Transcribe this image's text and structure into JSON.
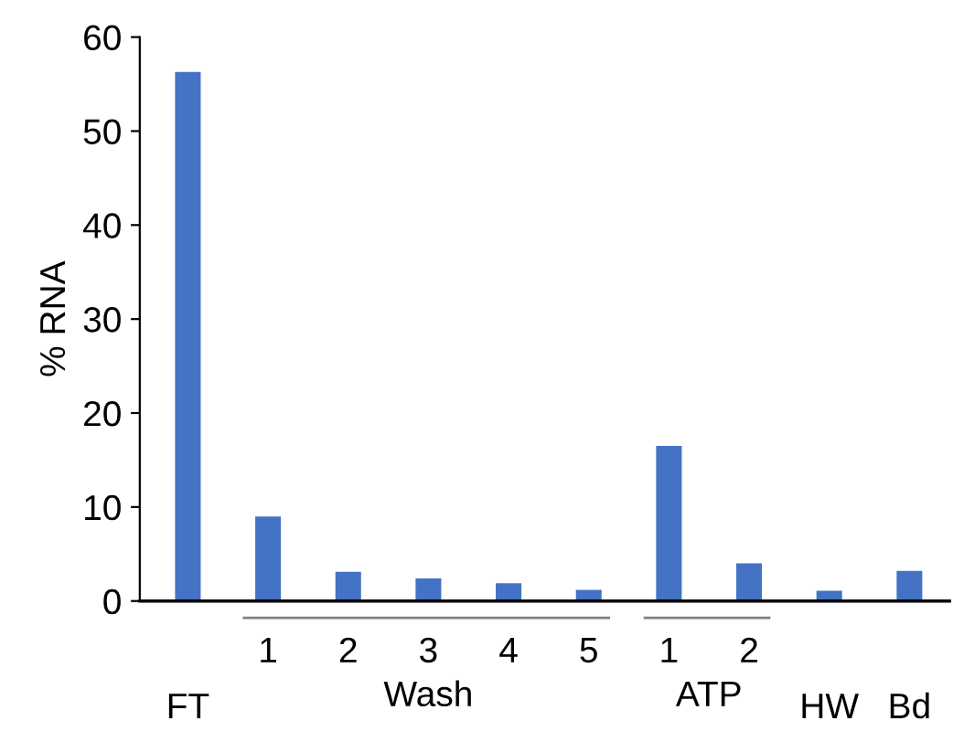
{
  "chart_data": {
    "type": "bar",
    "ylabel": "% RNA",
    "categories": [
      "FT",
      "1",
      "2",
      "3",
      "4",
      "5",
      "1",
      "2",
      "HW",
      "Bd"
    ],
    "values": [
      56.3,
      9.0,
      3.1,
      2.4,
      1.9,
      1.2,
      16.5,
      4.0,
      1.1,
      3.2
    ],
    "color": "#4472c4",
    "ylim": [
      0,
      60
    ],
    "yticks": [
      0,
      10,
      20,
      30,
      40,
      50,
      60
    ],
    "annotations": [
      "Wash",
      "ATP"
    ],
    "grid": false
  }
}
